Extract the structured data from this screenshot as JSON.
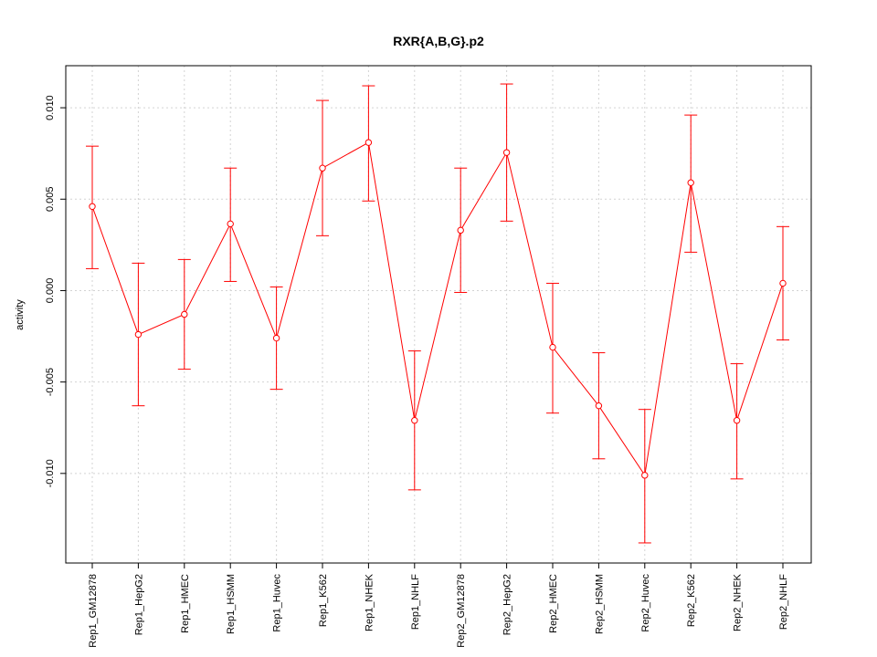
{
  "chart_data": {
    "type": "line",
    "title": "RXR{A,B,G}.p2",
    "xlabel": "",
    "ylabel": "activity",
    "ylim": [
      -0.0149,
      0.0123
    ],
    "yticks": [
      -0.01,
      -0.005,
      0.0,
      0.005,
      0.01
    ],
    "ytick_labels": [
      "-0.010",
      "-0.005",
      "0.000",
      "0.005",
      "0.010"
    ],
    "grid": true,
    "color": "#ff0000",
    "categories": [
      "Rep1_GM12878",
      "Rep1_HepG2",
      "Rep1_HMEC",
      "Rep1_HSMM",
      "Rep1_Huvec",
      "Rep1_K562",
      "Rep1_NHEK",
      "Rep1_NHLF",
      "Rep2_GM12878",
      "Rep2_HepG2",
      "Rep2_HMEC",
      "Rep2_HSMM",
      "Rep2_Huvec",
      "Rep2_K562",
      "Rep2_NHEK",
      "Rep2_NHLF"
    ],
    "values": [
      0.0046,
      -0.0024,
      -0.0013,
      0.00365,
      -0.0026,
      0.0067,
      0.0081,
      -0.0071,
      0.0033,
      0.00755,
      -0.0031,
      -0.0063,
      -0.0101,
      0.0059,
      -0.0071,
      0.0004
    ],
    "upper": [
      0.0079,
      0.0015,
      0.0017,
      0.0067,
      0.0002,
      0.0104,
      0.0112,
      -0.0033,
      0.0067,
      0.0113,
      0.0004,
      -0.0034,
      -0.0065,
      0.0096,
      -0.004,
      0.0035
    ],
    "lower": [
      0.0012,
      -0.0063,
      -0.0043,
      0.0005,
      -0.0054,
      0.003,
      0.0049,
      -0.0109,
      -0.0001,
      0.0038,
      -0.0067,
      -0.0092,
      -0.0138,
      0.0021,
      -0.0103,
      -0.0027
    ]
  }
}
